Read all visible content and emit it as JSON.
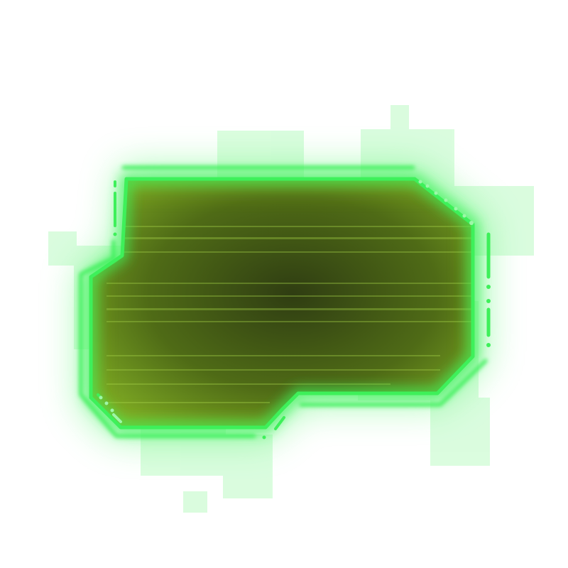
{
  "panel": {
    "kind": "sci-fi holographic frame",
    "text": ""
  },
  "colors": {
    "background": "#ffffff",
    "neon": "#3ef05a",
    "neon_soft": "#9df7a8",
    "glow": "#59f56f",
    "fill_center": "#2f3d12",
    "fill_mid": "#4f6b16",
    "fill_edge": "#86b526",
    "scanline": "#a9d84a"
  },
  "icons": {
    "corner_dots": "dot-trail-icon",
    "side_ticks": "dash-marker-icon"
  }
}
